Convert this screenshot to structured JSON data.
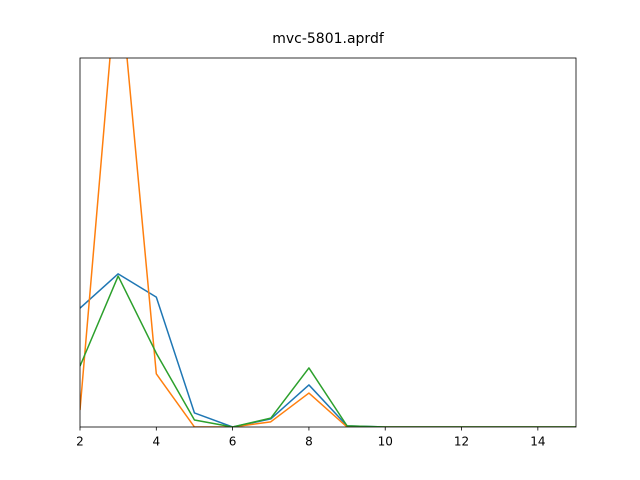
{
  "chart_data": {
    "type": "line",
    "title": "mvc-5801.aprdf",
    "x": [
      2,
      3,
      4,
      5,
      6,
      7,
      8,
      9,
      10,
      11,
      12,
      13,
      14,
      15
    ],
    "series": [
      {
        "color": "#1f77b4",
        "values": [
          0.322,
          0.415,
          0.352,
          0.038,
          0,
          0.022,
          0.114,
          0.003,
          0,
          0,
          0,
          0,
          0,
          0
        ]
      },
      {
        "color": "#ff7f0e",
        "values": [
          0.046,
          1.26,
          0.144,
          0,
          0,
          0.014,
          0.092,
          0,
          0,
          0,
          0,
          0,
          0,
          0
        ]
      },
      {
        "color": "#2ca02c",
        "values": [
          0.165,
          0.409,
          0.2,
          0.019,
          0,
          0.024,
          0.16,
          0.003,
          0,
          0,
          0,
          0,
          0,
          0
        ]
      }
    ],
    "xlim": [
      2,
      15
    ],
    "xticks": [
      2,
      4,
      6,
      8,
      10,
      12,
      14
    ],
    "ylim": [
      0,
      1
    ]
  }
}
